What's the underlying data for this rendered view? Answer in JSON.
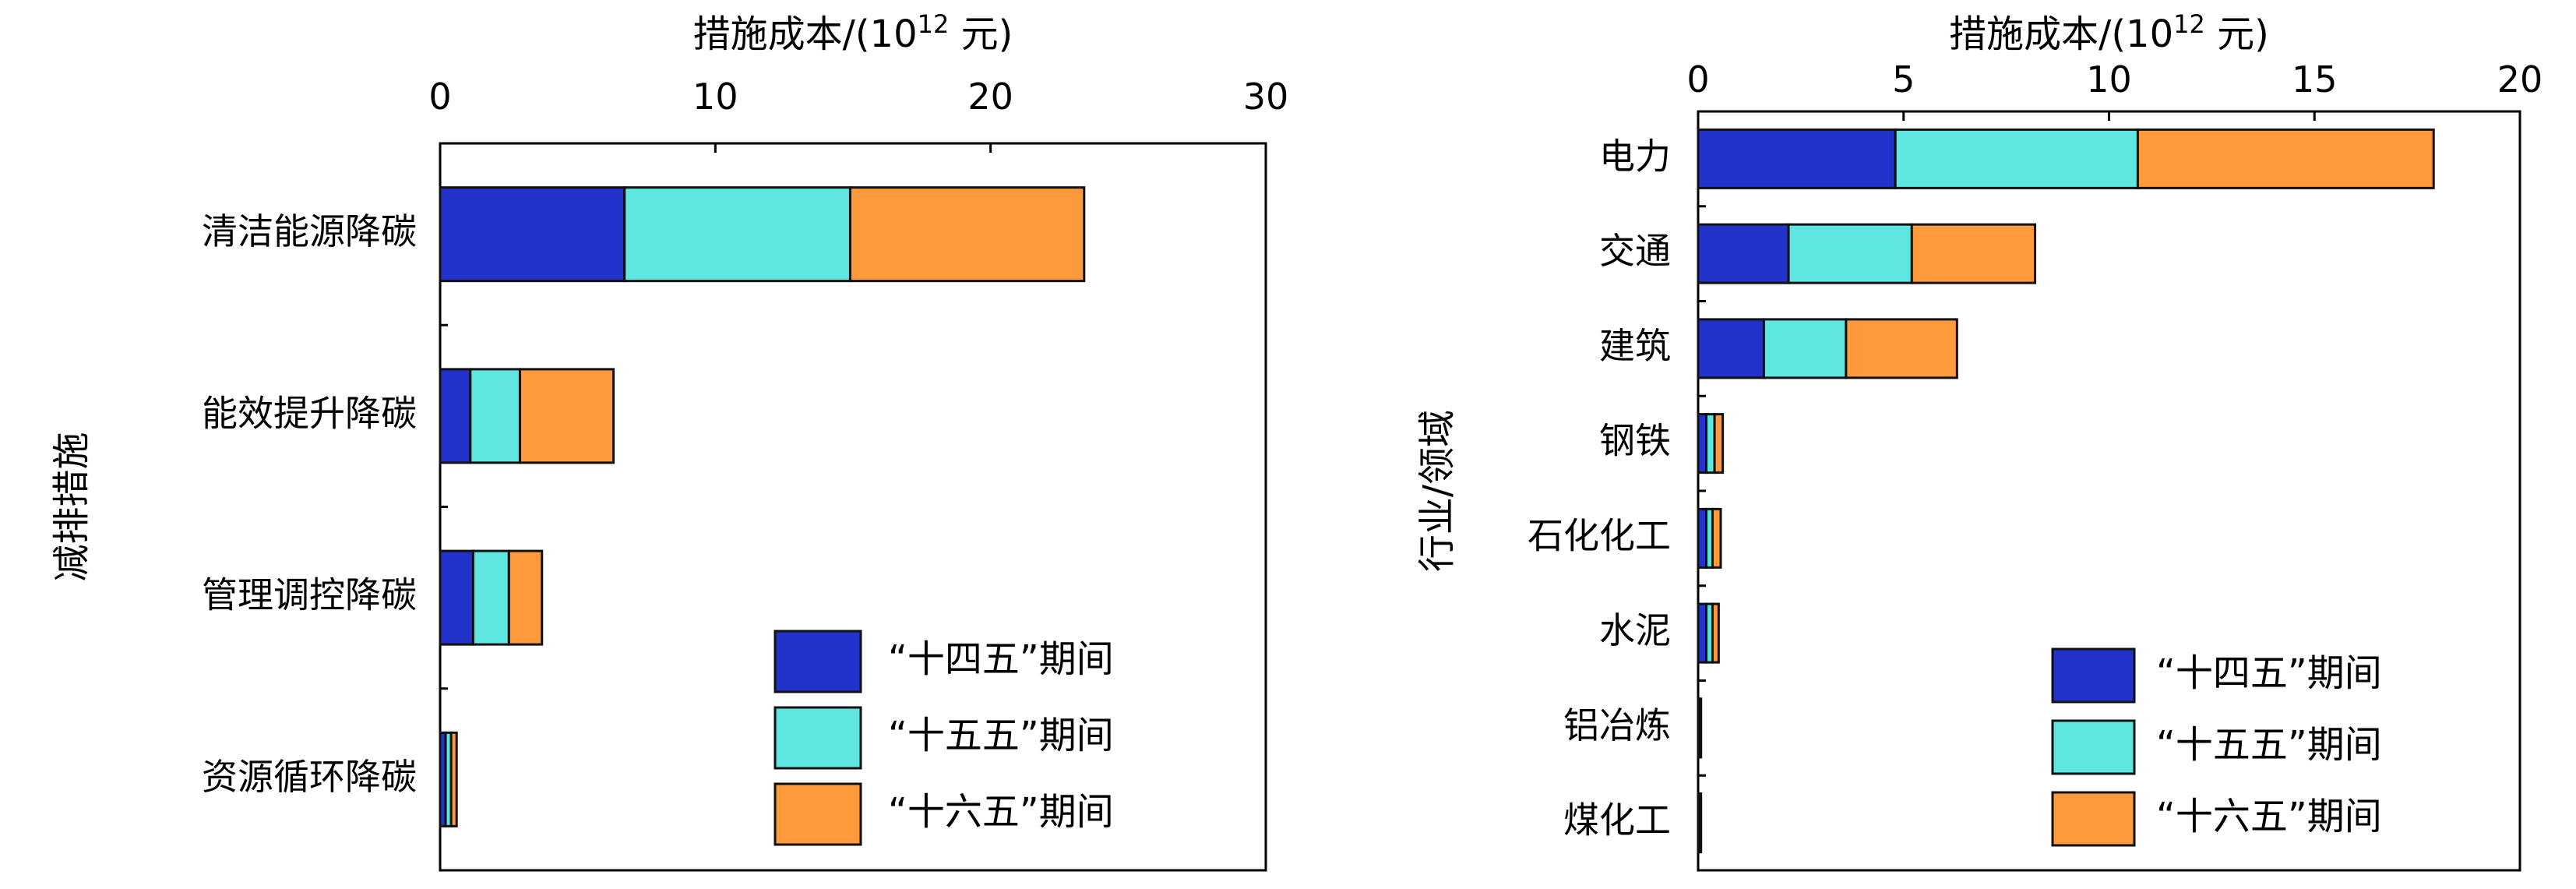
{
  "chart_data": [
    {
      "type": "bar",
      "orientation": "horizontal",
      "stacked": true,
      "xlabel": "措施成本/(10¹² 元)",
      "xlabel_main": "措施成本/(10",
      "xlabel_sup": "12",
      "xlabel_tail": " 元)",
      "ylabel": "减排措施",
      "xlim": [
        0,
        30
      ],
      "xticks": [
        0,
        10,
        20,
        30
      ],
      "x_axis_position": "top",
      "categories": [
        "清洁能源降碳",
        "能效提升降碳",
        "管理调控降碳",
        "资源循环降碳"
      ],
      "series": [
        {
          "name": "“十四五”期间",
          "color": "#2233cc",
          "values": [
            6.7,
            1.1,
            1.2,
            0.2
          ]
        },
        {
          "name": "“十五五”期间",
          "color": "#5ee6e0",
          "values": [
            8.2,
            1.8,
            1.3,
            0.2
          ]
        },
        {
          "name": "“十六五”期间",
          "color": "#ff9a3c",
          "values": [
            8.5,
            3.4,
            1.2,
            0.2
          ]
        }
      ],
      "legend_placement": "bottom-right",
      "grid": false
    },
    {
      "type": "bar",
      "orientation": "horizontal",
      "stacked": true,
      "xlabel": "措施成本/(10¹² 元)",
      "xlabel_main": "措施成本/(10",
      "xlabel_sup": "12",
      "xlabel_tail": " 元)",
      "ylabel": "行业/领域",
      "xlim": [
        0,
        20
      ],
      "xticks": [
        0,
        5,
        10,
        15,
        20
      ],
      "x_axis_position": "top",
      "categories": [
        "电力",
        "交通",
        "建筑",
        "钢铁",
        "石化化工",
        "水泥",
        "铝冶炼",
        "煤化工"
      ],
      "series": [
        {
          "name": "“十四五”期间",
          "color": "#2233cc",
          "values": [
            4.8,
            2.2,
            1.6,
            0.2,
            0.2,
            0.2,
            0.03,
            0.03
          ]
        },
        {
          "name": "“十五五”期间",
          "color": "#5ee6e0",
          "values": [
            5.9,
            3.0,
            2.0,
            0.2,
            0.15,
            0.15,
            0.02,
            0.02
          ]
        },
        {
          "name": "“十六五”期间",
          "color": "#ff9a3c",
          "values": [
            7.2,
            3.0,
            2.7,
            0.2,
            0.2,
            0.15,
            0.02,
            0.02
          ]
        }
      ],
      "legend_placement": "bottom-right",
      "grid": false
    }
  ]
}
